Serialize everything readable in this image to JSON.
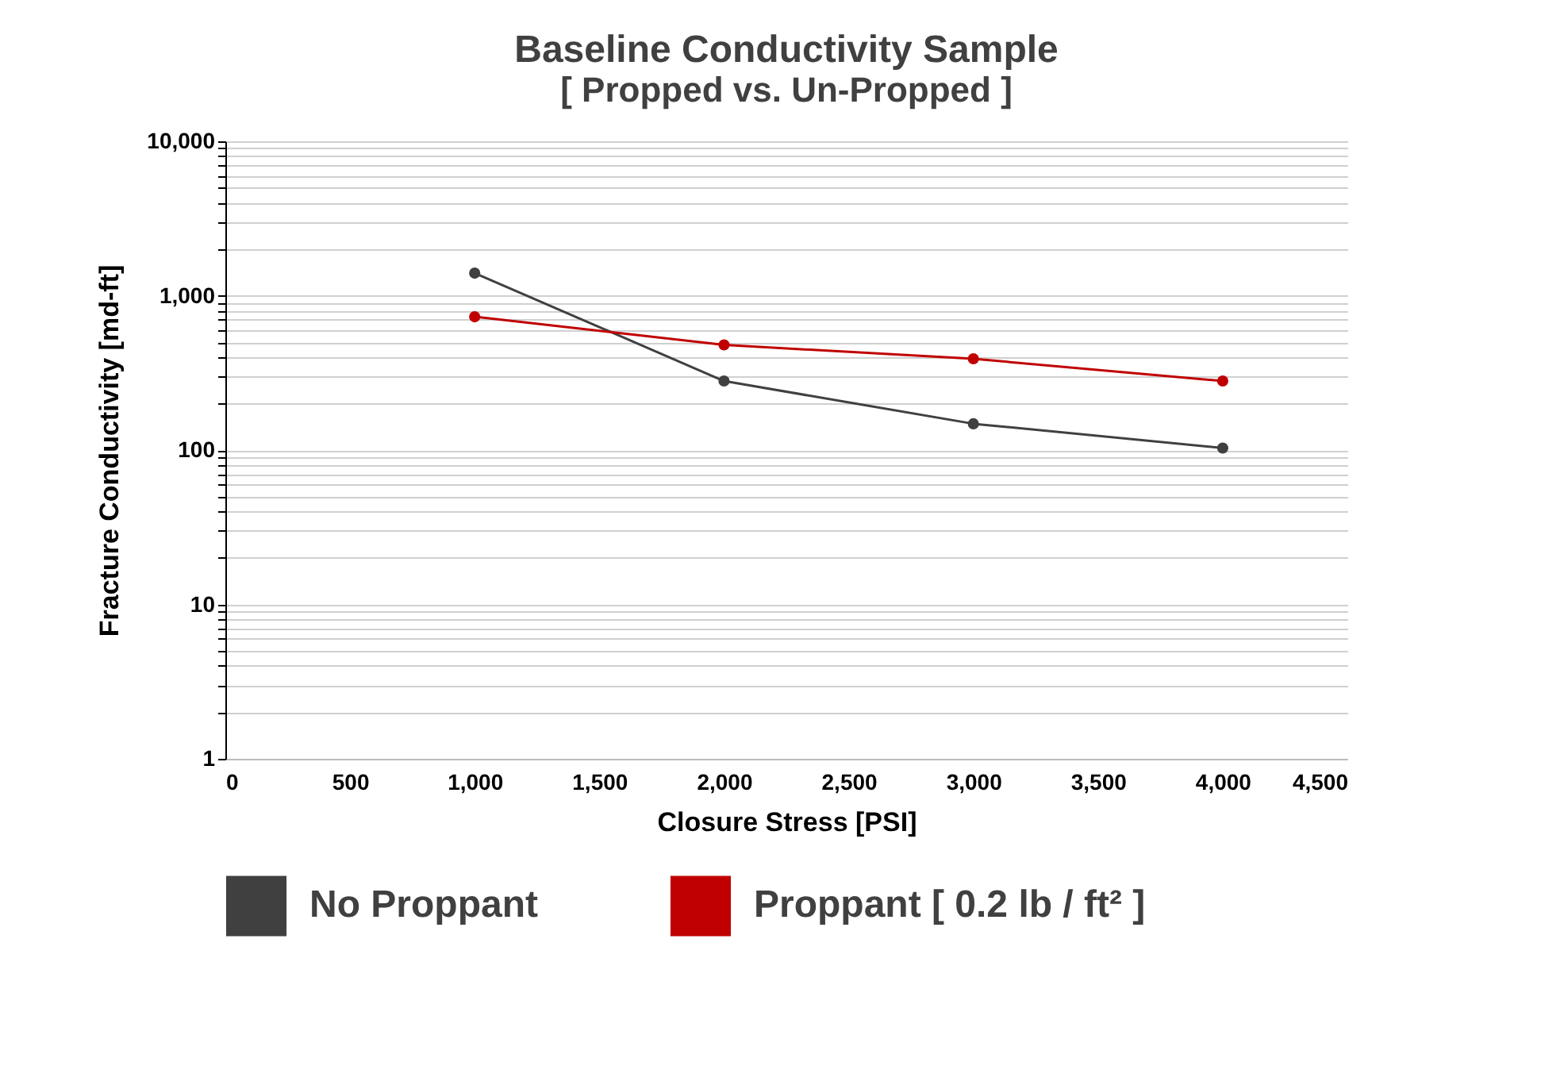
{
  "chart_data": {
    "type": "line",
    "title": "Baseline Conductivity Sample",
    "subtitle": "[ Propped vs. Un-Propped ]",
    "xlabel": "Closure Stress [PSI]",
    "ylabel": "Fracture Conductivity [md-ft]",
    "x": [
      1000,
      2000,
      3000,
      4000
    ],
    "series": [
      {
        "name": "No Proppant",
        "color": "#404040",
        "values": [
          1400,
          280,
          148,
          103
        ]
      },
      {
        "name": "Proppant [ 0.2 lb / ft² ]",
        "color": "#c00000",
        "values": [
          730,
          480,
          390,
          280
        ]
      }
    ],
    "log": "y",
    "xlim": [
      0,
      4500
    ],
    "xticks": [
      0,
      500,
      {
        "value": 1000,
        "label": "1,000"
      },
      {
        "value": 1500,
        "label": "1,500"
      },
      {
        "value": 2000,
        "label": "2,000"
      },
      {
        "value": 2500,
        "label": "2,500"
      },
      {
        "value": 3000,
        "label": "3,000"
      },
      {
        "value": 3500,
        "label": "3,500"
      },
      {
        "value": 4000,
        "label": "4,000"
      },
      {
        "value": 4500,
        "label": "4,500"
      }
    ],
    "ylim": [
      1,
      10000
    ],
    "yticks": [
      1,
      {
        "value": 2,
        "label": null
      },
      {
        "value": 3,
        "label": null
      },
      {
        "value": 4,
        "label": null
      },
      {
        "value": 5,
        "label": null
      },
      {
        "value": 6,
        "label": null
      },
      {
        "value": 7,
        "label": null
      },
      {
        "value": 8,
        "label": null
      },
      {
        "value": 9,
        "label": null
      },
      10,
      {
        "value": 20,
        "label": null
      },
      {
        "value": 30,
        "label": null
      },
      {
        "value": 40,
        "label": null
      },
      {
        "value": 50,
        "label": null
      },
      {
        "value": 60,
        "label": null
      },
      {
        "value": 70,
        "label": null
      },
      {
        "value": 80,
        "label": null
      },
      {
        "value": 90,
        "label": null
      },
      100,
      {
        "value": 200,
        "label": null
      },
      {
        "value": 300,
        "label": null
      },
      {
        "value": 400,
        "label": null
      },
      {
        "value": 500,
        "label": null
      },
      {
        "value": 600,
        "label": null
      },
      {
        "value": 700,
        "label": null
      },
      {
        "value": 800,
        "label": null
      },
      {
        "value": 900,
        "label": null
      },
      {
        "value": 1000,
        "label": "1,000"
      },
      {
        "value": 2000,
        "label": null
      },
      {
        "value": 3000,
        "label": null
      },
      {
        "value": 4000,
        "label": null
      },
      {
        "value": 5000,
        "label": null
      },
      {
        "value": 6000,
        "label": null
      },
      {
        "value": 7000,
        "label": null
      },
      {
        "value": 8000,
        "label": null
      },
      {
        "value": 9000,
        "label": null
      },
      {
        "value": 10000,
        "label": "10,000"
      }
    ],
    "grid": "y",
    "legend": "bottom",
    "marker": "circle",
    "line_style": "solid"
  }
}
